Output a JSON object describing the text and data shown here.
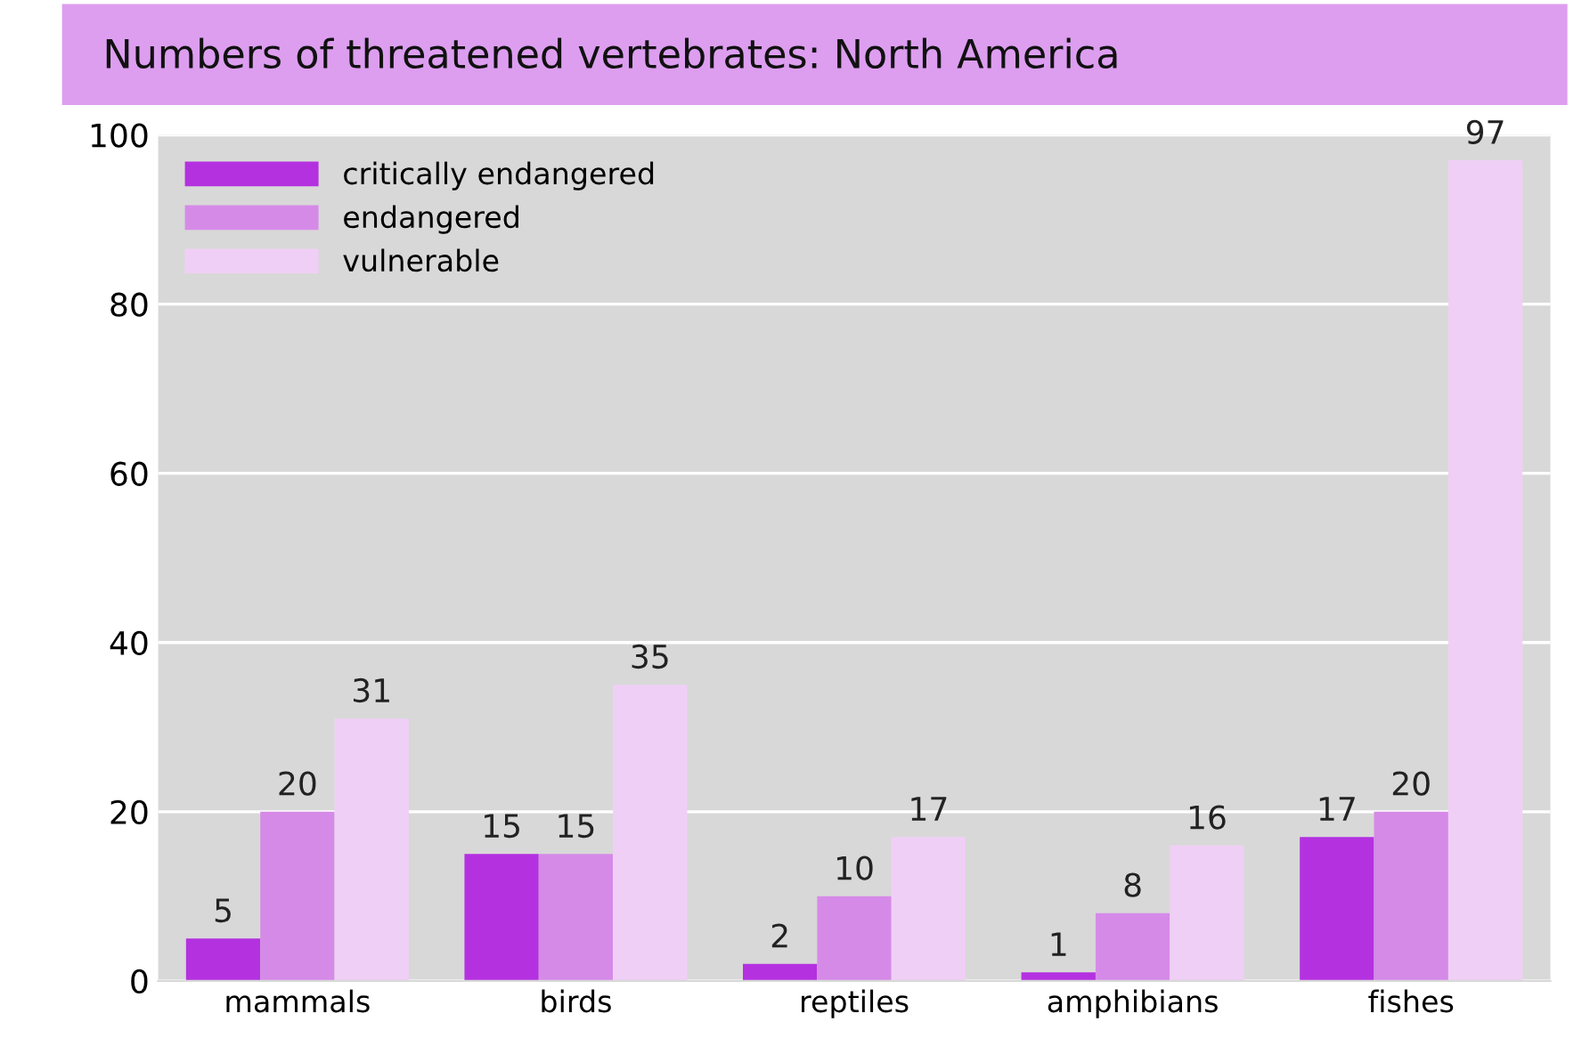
{
  "chart_data": {
    "type": "bar",
    "title": "Numbers of threatened vertebrates: North America",
    "categories": [
      "mammals",
      "birds",
      "reptiles",
      "amphibians",
      "fishes"
    ],
    "series": [
      {
        "name": "critically endangered",
        "color": "#b431e0",
        "values": [
          5,
          15,
          2,
          1,
          17
        ]
      },
      {
        "name": "endangered",
        "color": "#d68ae8",
        "values": [
          20,
          15,
          10,
          8,
          20
        ]
      },
      {
        "name": "vulnerable",
        "color": "#f0cff6",
        "values": [
          31,
          35,
          17,
          16,
          97
        ]
      }
    ],
    "ylim": [
      0,
      100
    ],
    "yticks": [
      0,
      20,
      40,
      60,
      80,
      100
    ],
    "grid": "y",
    "legend": "top left",
    "data_labels": true
  }
}
